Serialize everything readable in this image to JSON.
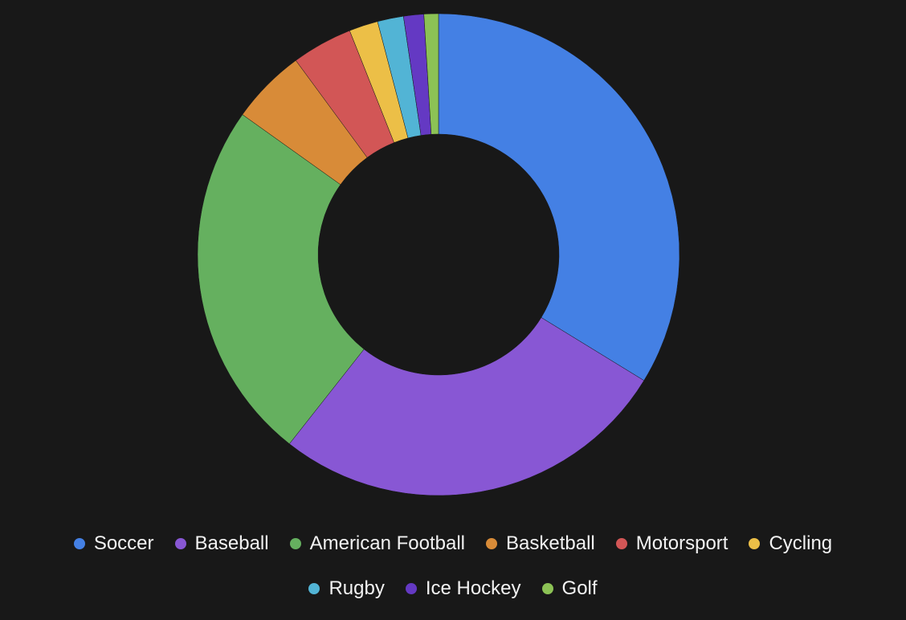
{
  "chart_data": {
    "type": "pie",
    "variant": "donut",
    "categories": [
      "Soccer",
      "Baseball",
      "American Football",
      "Basketball",
      "Motorsport",
      "Cycling",
      "Rugby",
      "Ice Hockey",
      "Golf"
    ],
    "values": [
      34.8,
      27.7,
      25.0,
      5.2,
      4.2,
      2.0,
      1.8,
      1.4,
      1.0
    ],
    "colors": [
      "#4480e4",
      "#8857d4",
      "#65b05f",
      "#d88b38",
      "#d25656",
      "#ecbf47",
      "#52b4d5",
      "#6439c3",
      "#8cc255"
    ],
    "legend_position": "bottom"
  }
}
